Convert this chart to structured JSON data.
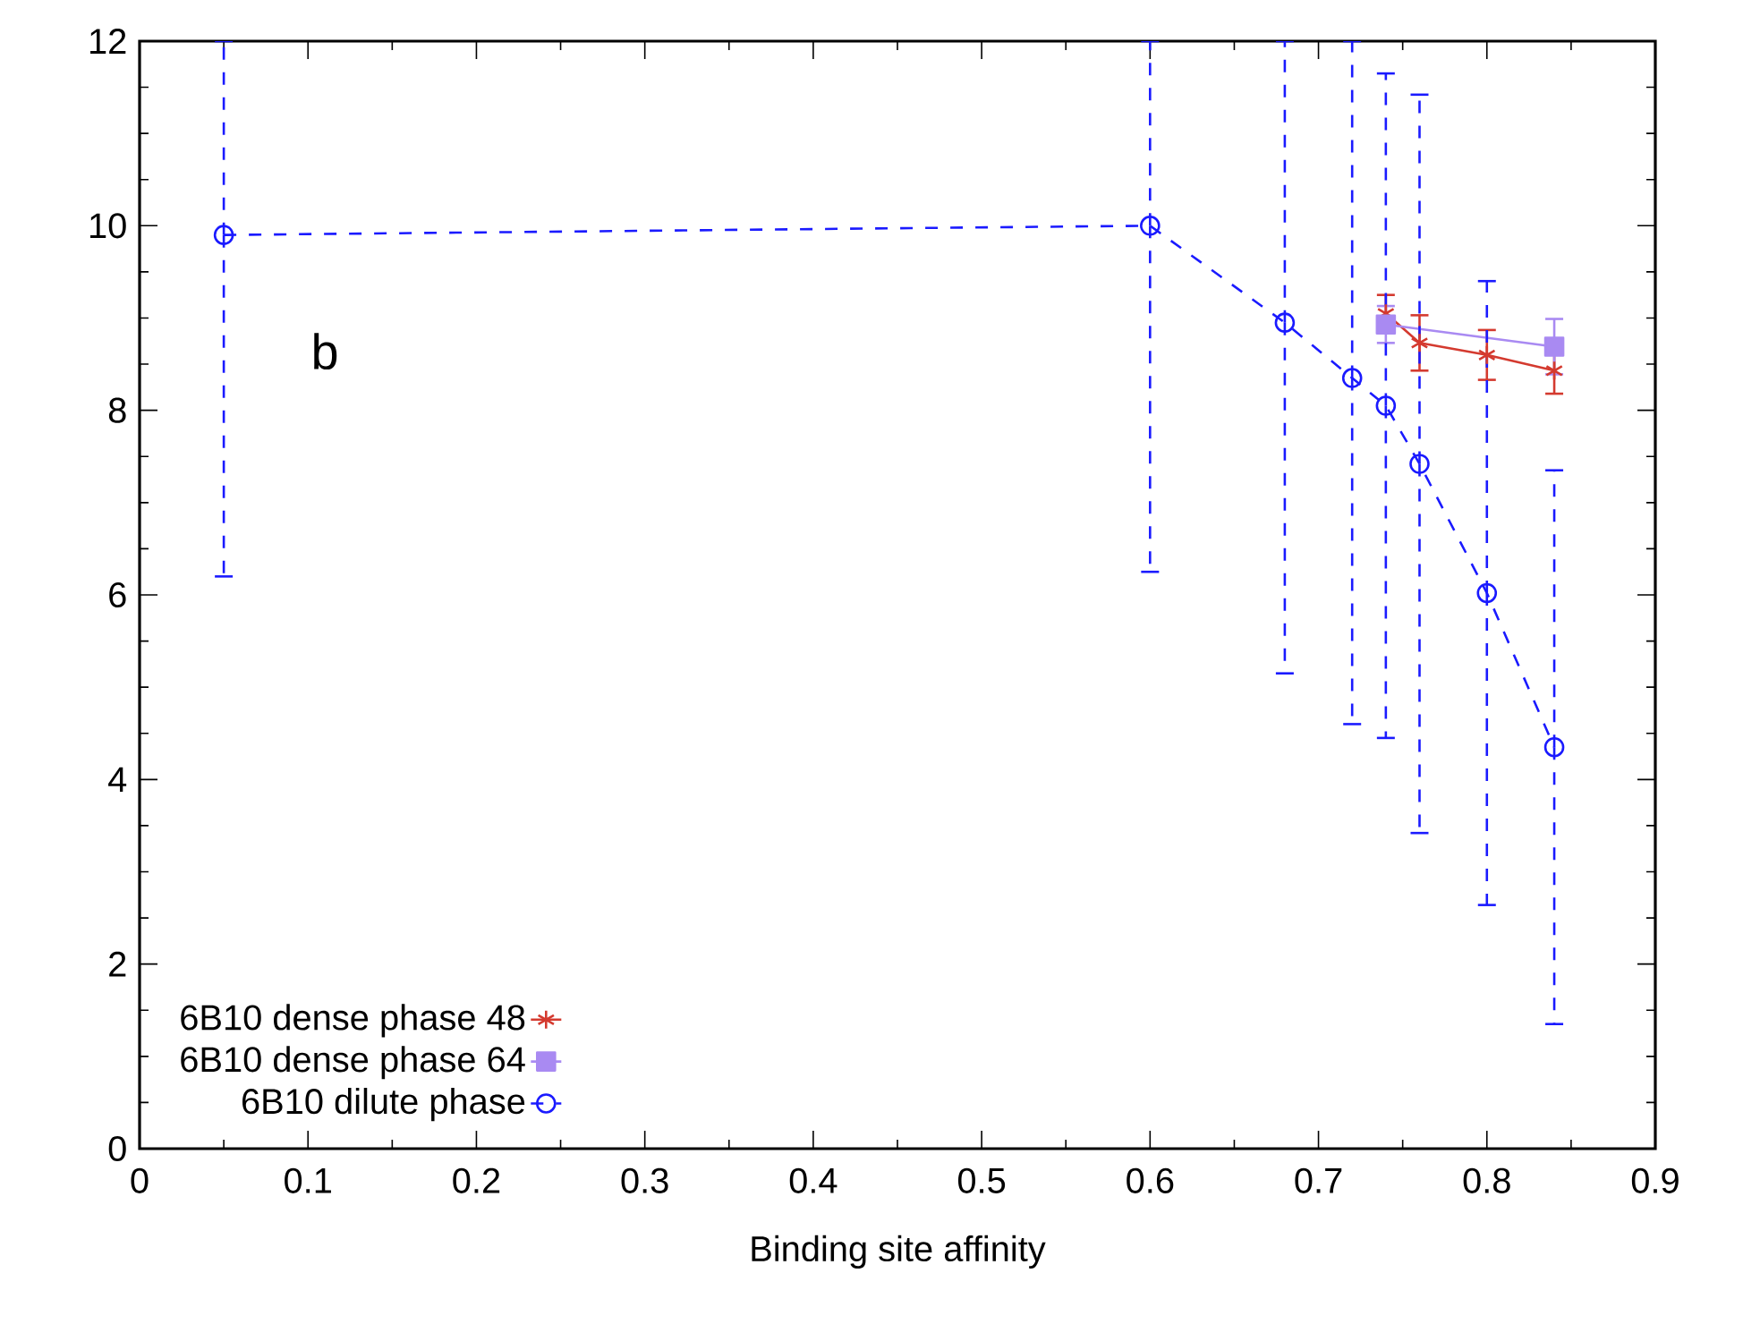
{
  "chart_data": {
    "type": "line",
    "xlabel": "Binding site affinity",
    "xlim": [
      0,
      0.9
    ],
    "ylim": [
      0,
      12
    ],
    "xticks": [
      0,
      0.1,
      0.2,
      0.3,
      0.4,
      0.5,
      0.6,
      0.7,
      0.8,
      0.9
    ],
    "yticks": [
      0,
      2,
      4,
      6,
      8,
      10,
      12
    ],
    "legend": "bottom left",
    "grid": false,
    "annotations": [
      "b"
    ],
    "series": [
      {
        "name": "6B10 dense phase 48",
        "color": "#d43a2f",
        "marker": "cross",
        "line_style": "solid",
        "x": [
          0.74,
          0.76,
          0.8,
          0.84
        ],
        "values": [
          9.05,
          8.73,
          8.6,
          8.43
        ],
        "errors": [
          0.2,
          0.3,
          0.27,
          0.25
        ]
      },
      {
        "name": "6B10 dense phase 64",
        "color": "#a98af2",
        "marker": "square",
        "line_style": "solid",
        "x": [
          0.74,
          0.84
        ],
        "values": [
          8.93,
          8.69
        ],
        "errors": [
          0.2,
          0.3
        ]
      },
      {
        "name": "6B10 dilute phase",
        "color": "#1a1aff",
        "marker": "circle",
        "line_style": "dashed",
        "x": [
          0.05,
          0.6,
          0.68,
          0.72,
          0.74,
          0.76,
          0.8,
          0.84
        ],
        "values": [
          9.9,
          10.0,
          8.95,
          8.35,
          8.05,
          7.42,
          6.02,
          4.35
        ],
        "errors": [
          [
            6.2,
            12
          ],
          [
            6.25,
            12
          ],
          [
            5.15,
            12
          ],
          [
            4.6,
            12
          ],
          3.6,
          4.0,
          3.38,
          3.0
        ]
      }
    ]
  }
}
